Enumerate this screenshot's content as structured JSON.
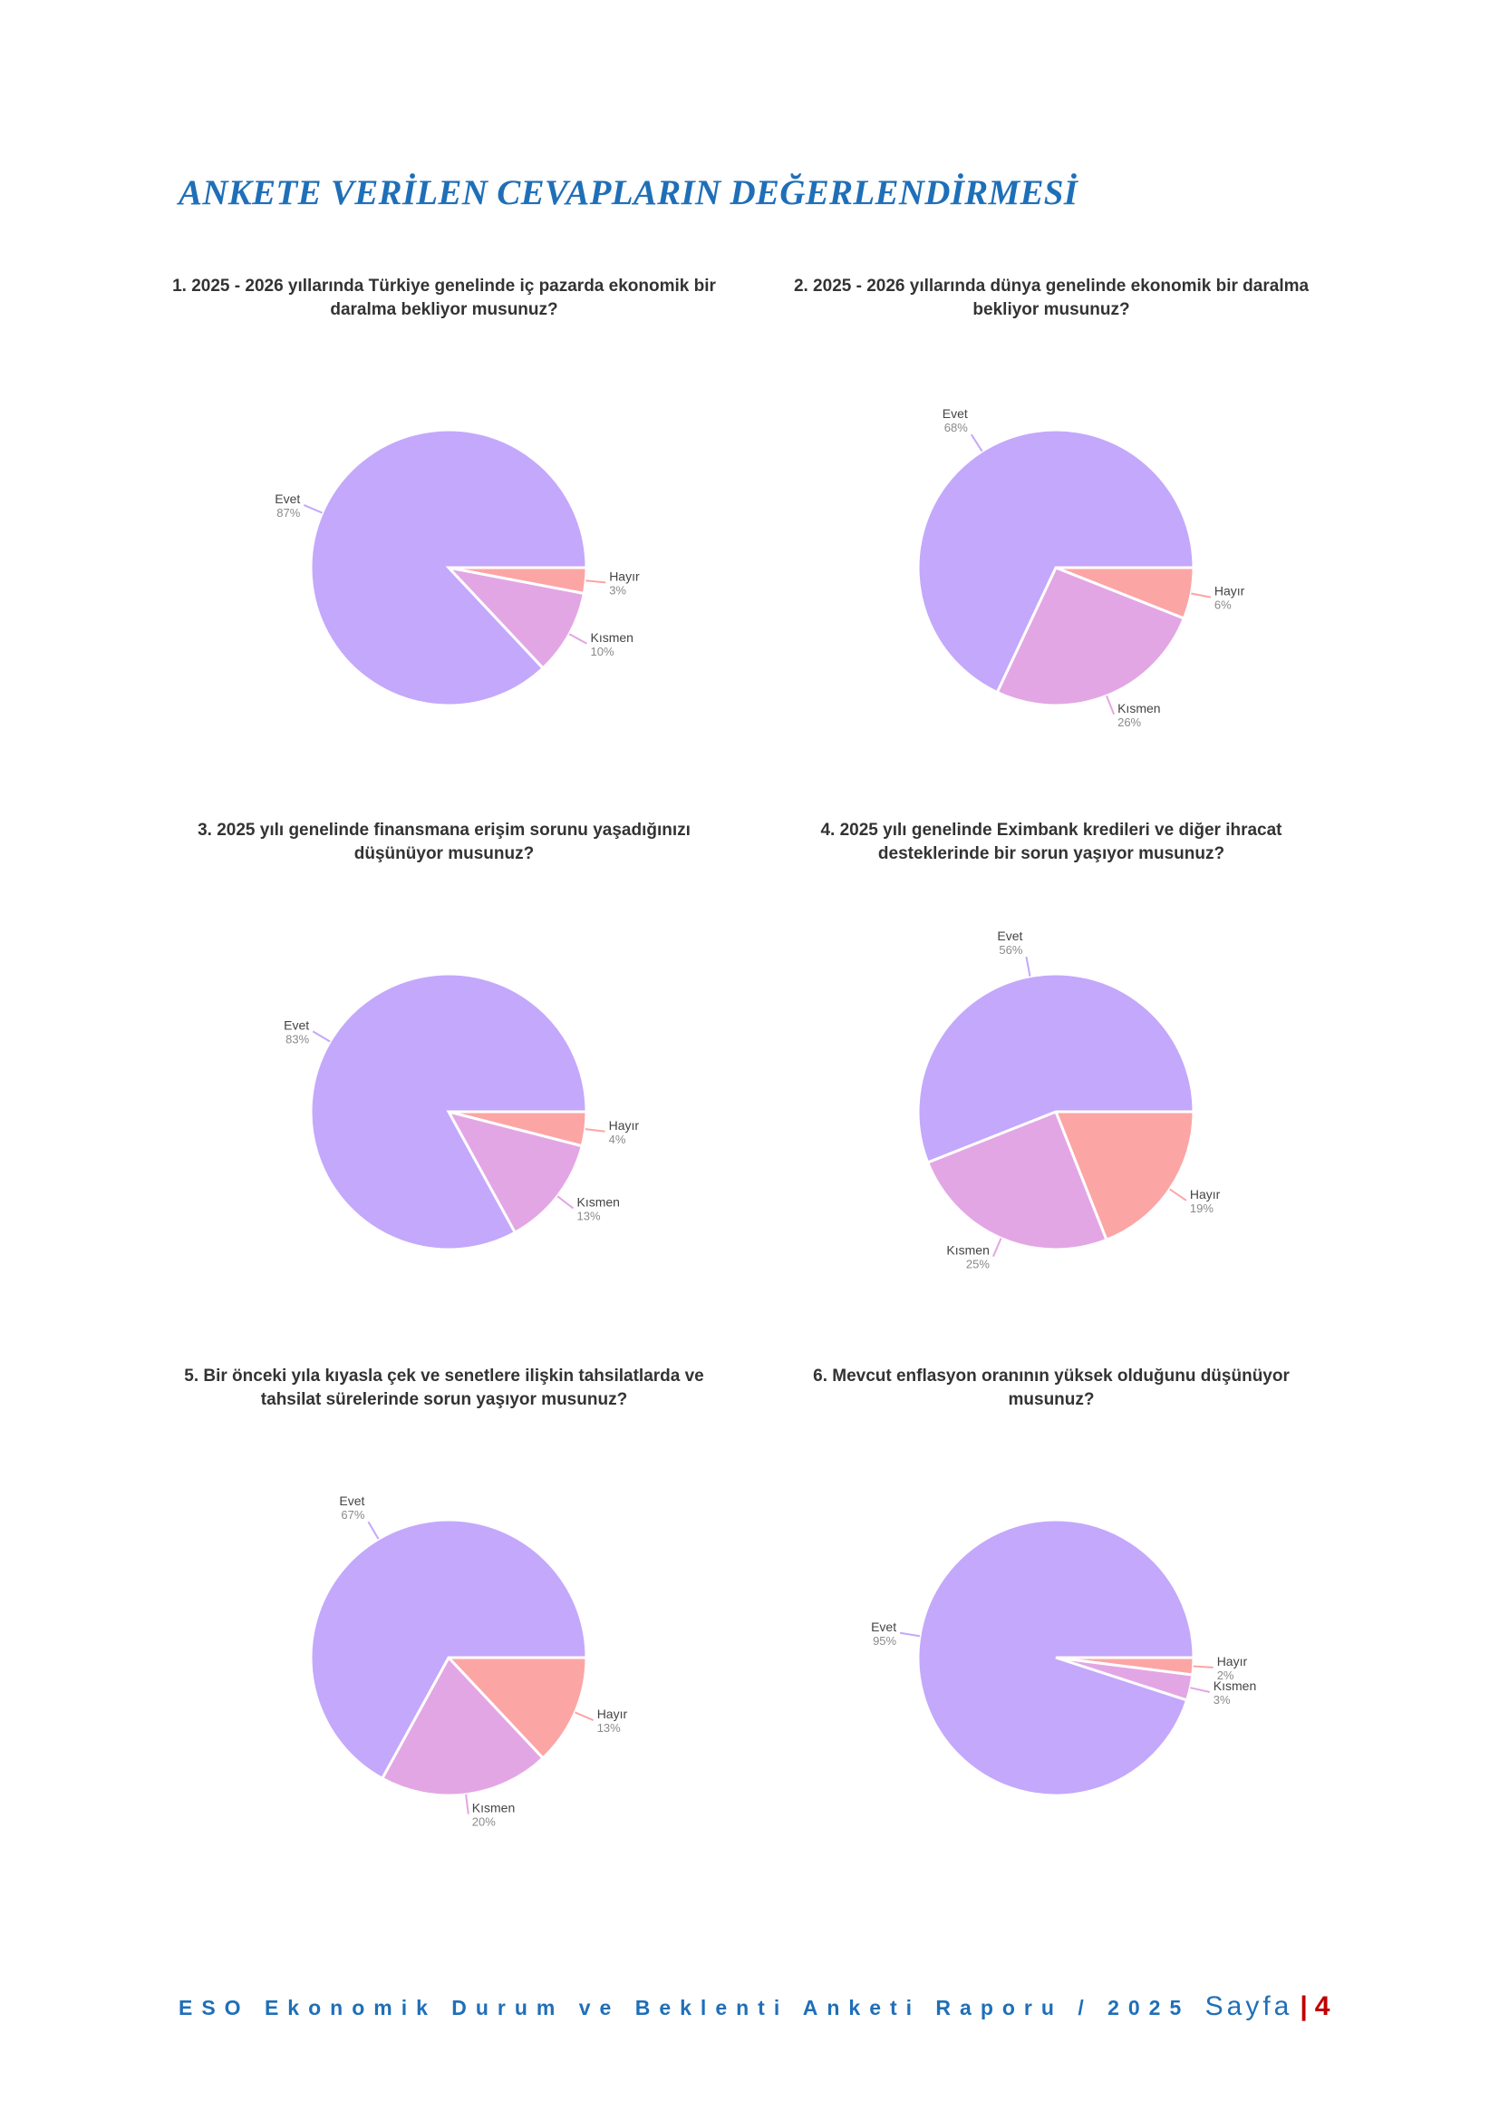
{
  "page_title": "ANKETE VERİLEN CEVAPLARIN DEĞERLENDİRMESİ",
  "colors": {
    "evet": "#c4a8fc",
    "hayir": "#fca5a5",
    "kismen": "#e3a6e4",
    "title": "#1f6fb8",
    "accent": "#c00000"
  },
  "chart_data": [
    {
      "type": "pie",
      "title": "1. 2025 - 2026 yıllarında Türkiye genelinde iç pazarda ekonomik bir daralma bekliyor musunuz?",
      "slices": [
        {
          "label": "Evet",
          "value": 87,
          "pct_label": "87%"
        },
        {
          "label": "Hayır",
          "value": 3,
          "pct_label": "3%"
        },
        {
          "label": "Kısmen",
          "value": 10,
          "pct_label": "10%"
        }
      ]
    },
    {
      "type": "pie",
      "title": "2. 2025 - 2026 yıllarında dünya genelinde ekonomik bir daralma bekliyor musunuz?",
      "slices": [
        {
          "label": "Evet",
          "value": 68,
          "pct_label": "68%"
        },
        {
          "label": "Hayır",
          "value": 6,
          "pct_label": "6%"
        },
        {
          "label": "Kısmen",
          "value": 26,
          "pct_label": "26%"
        }
      ]
    },
    {
      "type": "pie",
      "title": "3. 2025 yılı genelinde finansmana erişim sorunu yaşadığınızı düşünüyor musunuz?",
      "slices": [
        {
          "label": "Evet",
          "value": 83,
          "pct_label": "83%"
        },
        {
          "label": "Hayır",
          "value": 4,
          "pct_label": "4%"
        },
        {
          "label": "Kısmen",
          "value": 13,
          "pct_label": "13%"
        }
      ]
    },
    {
      "type": "pie",
      "title": "4. 2025 yılı genelinde Eximbank kredileri ve diğer ihracat desteklerinde bir sorun yaşıyor musunuz?",
      "slices": [
        {
          "label": "Evet",
          "value": 56,
          "pct_label": "56%"
        },
        {
          "label": "Hayır",
          "value": 19,
          "pct_label": "19%"
        },
        {
          "label": "Kısmen",
          "value": 25,
          "pct_label": "25%"
        }
      ]
    },
    {
      "type": "pie",
      "title": "5. Bir önceki yıla kıyasla çek ve senetlere ilişkin tahsilatlarda ve tahsilat sürelerinde sorun yaşıyor musunuz?",
      "slices": [
        {
          "label": "Evet",
          "value": 67,
          "pct_label": "67%"
        },
        {
          "label": "Hayır",
          "value": 13,
          "pct_label": "13%"
        },
        {
          "label": "Kısmen",
          "value": 20,
          "pct_label": "20%"
        }
      ]
    },
    {
      "type": "pie",
      "title": "6. Mevcut enflasyon oranının yüksek olduğunu düşünüyor musunuz?",
      "slices": [
        {
          "label": "Evet",
          "value": 95,
          "pct_label": "95%"
        },
        {
          "label": "Hayır",
          "value": 2,
          "pct_label": "2%"
        },
        {
          "label": "Kısmen",
          "value": 3,
          "pct_label": "3%"
        }
      ]
    }
  ],
  "footer": {
    "report_name": "ESO Ekonomik Durum ve Beklenti Anketi Raporu / 2025",
    "page_label": "Sayfa",
    "separator": "|",
    "page_number": "4"
  }
}
